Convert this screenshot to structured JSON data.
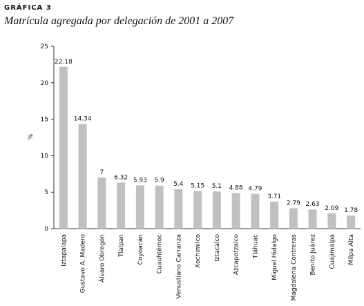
{
  "chart_data": {
    "type": "bar",
    "title": "GRÁFICA 3",
    "subtitle": "Matrícula agregada por delegación de 2001 a 2007",
    "y_label": "%",
    "categories": [
      "Iztapalapa",
      "Gustavo A. Madero",
      "Álvaro Obregón",
      "Tlalpan",
      "Coyoacán",
      "Cuauhtémoc",
      "Venustiano Carranza",
      "Xochimilco",
      "Iztacalco",
      "Azcapotzalco",
      "Tláhuac",
      "Miguel Hidalgo",
      "Magdalena Contreras",
      "Benito Juárez",
      "Cuajimalpa",
      "Milpa Alta"
    ],
    "values": [
      22.18,
      14.34,
      7,
      6.32,
      5.93,
      5.9,
      5.4,
      5.15,
      5.1,
      4.88,
      4.79,
      3.71,
      2.79,
      2.63,
      2.09,
      1.78
    ],
    "color": "#c0c0c0",
    "ylim": [
      0,
      25
    ],
    "yticks": [
      0,
      5,
      10,
      15,
      20,
      25
    ],
    "grid": false
  }
}
